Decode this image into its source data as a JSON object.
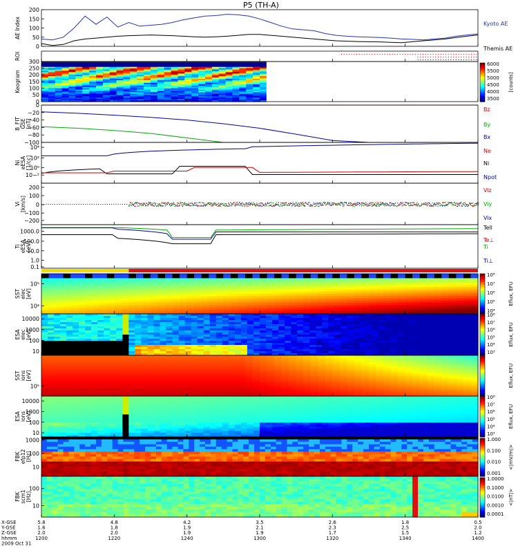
{
  "title": "P5 (TH-A)",
  "colors": {
    "kyoto": "#2233bb",
    "themis": "#000000",
    "bz": "#cc0000",
    "by": "#00aa00",
    "bx": "#0000aa",
    "ne": "#cc0000",
    "ni": "#000000",
    "npot": "#000088",
    "vz": "#cc0000",
    "vy": "#00aa00",
    "vx": "#0000aa",
    "tell": "#000000",
    "tepar": "#cc0000",
    "ti": "#00aa00",
    "tperp": "#0000aa"
  },
  "chart_data": [
    {
      "type": "line",
      "panel": "ae",
      "ylabel": "AE Index",
      "ylim": [
        0,
        200
      ],
      "yticks": [
        "0",
        "50",
        "100",
        "150",
        "200"
      ],
      "series": [
        {
          "name": "Kyoto AE",
          "x": [
            0,
            3,
            6,
            9,
            12,
            15,
            18,
            21,
            24,
            27,
            30,
            33,
            36,
            39,
            42,
            45,
            48,
            51,
            54,
            57,
            60,
            63,
            66,
            69,
            72,
            75,
            78,
            81,
            84,
            87,
            90,
            93,
            96,
            99,
            102,
            105,
            108,
            111,
            114,
            117,
            120
          ],
          "values": [
            40,
            35,
            50,
            100,
            165,
            120,
            160,
            105,
            130,
            110,
            115,
            120,
            130,
            145,
            155,
            165,
            168,
            175,
            172,
            165,
            150,
            130,
            110,
            95,
            90,
            85,
            70,
            60,
            55,
            52,
            50,
            48,
            45,
            40,
            38,
            35,
            40,
            45,
            55,
            62,
            68
          ]
        },
        {
          "name": "Themis AE",
          "x": [
            0,
            3,
            6,
            9,
            12,
            15,
            18,
            21,
            24,
            27,
            30,
            33,
            36,
            39,
            42,
            45,
            48,
            51,
            54,
            57,
            60,
            63,
            66,
            69,
            72,
            75,
            78,
            81,
            84,
            87,
            90,
            93,
            96,
            99,
            102,
            105,
            108,
            111,
            114,
            117,
            120
          ],
          "values": [
            15,
            5,
            10,
            30,
            40,
            45,
            50,
            55,
            58,
            60,
            62,
            60,
            58,
            55,
            52,
            50,
            52,
            55,
            60,
            65,
            65,
            60,
            55,
            50,
            45,
            40,
            35,
            30,
            28,
            26,
            25,
            24,
            22,
            20,
            25,
            30,
            35,
            40,
            48,
            55,
            62
          ]
        }
      ]
    },
    {
      "type": "table",
      "panel": "roi",
      "ylabel": "ROI"
    },
    {
      "type": "heatmap",
      "panel": "keogram",
      "ylabel": "Keogram",
      "ylim": [
        0,
        300
      ],
      "yticks": [
        "0",
        "50",
        "100",
        "150",
        "200",
        "250",
        "300"
      ],
      "colorbar": {
        "ticks": [
          "3500",
          "4000",
          "4500",
          "5000",
          "5500",
          "6000"
        ],
        "unit": "[counts]"
      }
    },
    {
      "type": "line",
      "panel": "bfield",
      "ylabel": "B_FIT GSE [nT]",
      "ylim": [
        -100,
        0
      ],
      "yticks": [
        "0",
        "−20",
        "−40",
        "−60",
        "−80",
        "−100"
      ],
      "series": [
        {
          "name": "Bz",
          "x": [
            0,
            120
          ],
          "values": [
            0,
            0
          ]
        },
        {
          "name": "By",
          "x": [
            0,
            10,
            20,
            30,
            40,
            50,
            60,
            70,
            80,
            90,
            100,
            110,
            120
          ],
          "values": [
            -58,
            -62,
            -68,
            -76,
            -88,
            -100,
            -100,
            -100,
            -100,
            -100,
            -100,
            -100,
            -100
          ]
        },
        {
          "name": "Bx",
          "x": [
            0,
            10,
            20,
            30,
            40,
            50,
            60,
            70,
            80,
            90,
            100,
            110,
            120
          ],
          "values": [
            -18,
            -22,
            -27,
            -33,
            -40,
            -50,
            -62,
            -78,
            -95,
            -100,
            -100,
            -100,
            -100
          ]
        }
      ]
    },
    {
      "type": "line",
      "panel": "density",
      "ylabel": "Ni eESA [1/cc]",
      "yticks": [
        "10−²",
        "10⁰",
        "10²",
        "10⁴"
      ],
      "series": [
        {
          "name": "Ne"
        },
        {
          "name": "Ni"
        },
        {
          "name": "Npot"
        }
      ]
    },
    {
      "type": "line",
      "panel": "velocity",
      "ylabel": "Vi [km/s]",
      "ylim": [
        -300,
        300
      ],
      "yticks": [
        "200",
        "100",
        "0",
        "−100",
        "−200"
      ],
      "series": [
        {
          "name": "Viz"
        },
        {
          "name": "Viy"
        },
        {
          "name": "Vix"
        }
      ]
    },
    {
      "type": "line",
      "panel": "temp",
      "ylabel": "Ti eESA [eV]",
      "yticks": [
        "1000.0",
        "100.0",
        "10.0",
        "1.0",
        "0.1"
      ],
      "series": [
        {
          "name": "Tell"
        },
        {
          "name": "Te⊥"
        },
        {
          "name": "Ti"
        },
        {
          "name": "Ti⊥"
        }
      ]
    },
    {
      "type": "heatmap",
      "panel": "sst_e",
      "ylabel": "SST elec [eV]",
      "yticks": [
        "10⁴",
        "10⁵"
      ]
    },
    {
      "type": "heatmap",
      "panel": "esa_e",
      "ylabel": "ESA elec [eV]",
      "yticks": [
        "10000",
        "1000",
        "100",
        "10"
      ]
    },
    {
      "type": "heatmap",
      "panel": "sst_i",
      "ylabel": "SST ions [eV]",
      "yticks": [
        "10⁵"
      ]
    },
    {
      "type": "heatmap",
      "panel": "esa_i",
      "ylabel": "ESA ions [eV]",
      "yticks": [
        "10000",
        "1000",
        "100",
        "10"
      ],
      "colorbar_ticks": [
        "10⁸",
        "10⁷",
        "10⁶",
        "10⁵",
        "10⁴",
        "10³"
      ],
      "colorbar_label": "Eflux, EFU"
    },
    {
      "type": "heatmap",
      "panel": "fbk1",
      "ylabel": "FBK efp12 [Hz]",
      "yticks": [
        "1000",
        "100",
        "10"
      ],
      "colorbar_ticks": [
        "1.000",
        "0.100",
        "0.010",
        "0.001"
      ],
      "colorbar_label": "<|mV/m|>"
    },
    {
      "type": "heatmap",
      "panel": "fbk2",
      "ylabel": "FBK scm1 [Hz]",
      "yticks": [
        "100",
        "10"
      ],
      "colorbar_ticks": [
        "1.0000",
        "0.1000",
        "0.0100",
        "0.0010",
        "0.0001"
      ],
      "colorbar_label": "<|nT|>"
    }
  ],
  "legend": {
    "ae": [
      "Kyoto AE",
      "Themis AE"
    ],
    "bfield": [
      "Bz",
      "By",
      "Bx"
    ],
    "density": [
      "Ne",
      "Ni",
      "Npot"
    ],
    "velocity": [
      "Viz",
      "Viy",
      "Vix"
    ],
    "temp": [
      "Tell",
      "Te⊥",
      "Ti",
      "Ti⊥"
    ]
  },
  "axis_labels": {
    "ae": [
      "AE Index"
    ],
    "roi": [
      "ROI"
    ],
    "keogram": [
      "Keogram"
    ],
    "bfield": [
      "B_FIT",
      "GSE",
      "[nT]"
    ],
    "density": [
      "Ni",
      "eESA",
      "[1/cc]"
    ],
    "velocity": [
      "Vi",
      "[km/s]"
    ],
    "temp": [
      "Ti",
      "eESA",
      "[eV]"
    ],
    "sst_e": [
      "SST",
      "elec",
      "[eV]"
    ],
    "esa_e": [
      "ESA",
      "elec",
      "[eV]"
    ],
    "sst_i": [
      "SST",
      "ions",
      "[eV]"
    ],
    "esa_i": [
      "ESA",
      "ions",
      "[eV]"
    ],
    "fbk1": [
      "FBK",
      "efp12",
      "[Hz]"
    ],
    "fbk2": [
      "FBK",
      "scm1",
      "[Hz]"
    ]
  },
  "colorbar_labels": {
    "keogram": "[counts]",
    "sst_e": "Eflux, EFU",
    "esa_e": "Eflux, EFU",
    "sst_i": "Eflux, EFU",
    "esa_i": "Eflux, EFU",
    "fbk1": "<|mV/m|>",
    "fbk2": "<|nT|>"
  },
  "ephemeris": {
    "row_labels": [
      "X-GSE",
      "Y-GSE",
      "Z-GSE",
      "hhmm",
      "2009 Oct 31"
    ],
    "columns": [
      {
        "x": 0,
        "vals": [
          "5.8",
          "1.6",
          "2.0",
          "1200"
        ]
      },
      {
        "x": 20,
        "vals": [
          "4.8",
          "1.8",
          "2.0",
          "1220"
        ]
      },
      {
        "x": 40,
        "vals": [
          "4.2",
          "1.9",
          "1.9",
          "1240"
        ]
      },
      {
        "x": 60,
        "vals": [
          "3.5",
          "2.1",
          "1.9",
          "1300"
        ]
      },
      {
        "x": 80,
        "vals": [
          "2.6",
          "2.3",
          "1.7",
          "1320"
        ]
      },
      {
        "x": 100,
        "vals": [
          "1.8",
          "2.5",
          "1.5",
          "1340"
        ]
      },
      {
        "x": 120,
        "vals": [
          "0.5",
          "2.0",
          "1.2",
          "1400"
        ]
      }
    ]
  }
}
